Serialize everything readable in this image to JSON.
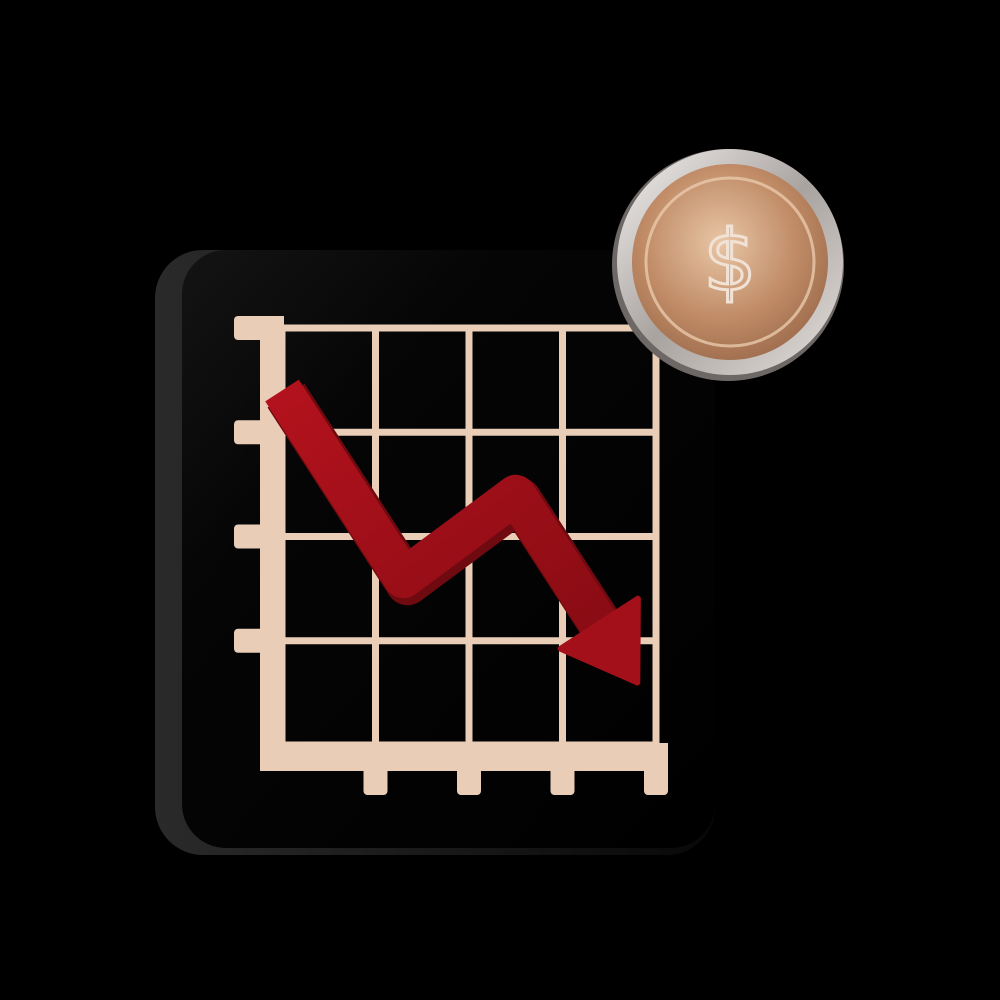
{
  "icon": {
    "name": "declining-chart-with-coin-illustration",
    "colors": {
      "background": "#000000",
      "panel": "#050505",
      "panel_edge": "#1c1c1c",
      "grid": "#e9cdb6",
      "grid_shadow": "#c9a98f",
      "arrow": "#a3101a",
      "arrow_dark": "#6f0a10",
      "coin_rim": "#d9d4d2",
      "coin_face": "#c5946f",
      "coin_face_light": "#e6c2a2"
    },
    "coin": {
      "symbol": "$"
    },
    "trend": {
      "direction": "down",
      "points": [
        {
          "x": 0,
          "y": 3.4
        },
        {
          "x": 1.3,
          "y": 1.6
        },
        {
          "x": 2.5,
          "y": 2.4
        },
        {
          "x": 3.8,
          "y": 0.6
        }
      ],
      "x_range": [
        0,
        4
      ],
      "y_range": [
        0,
        4
      ]
    },
    "grid": {
      "columns": 4,
      "rows": 4
    }
  }
}
